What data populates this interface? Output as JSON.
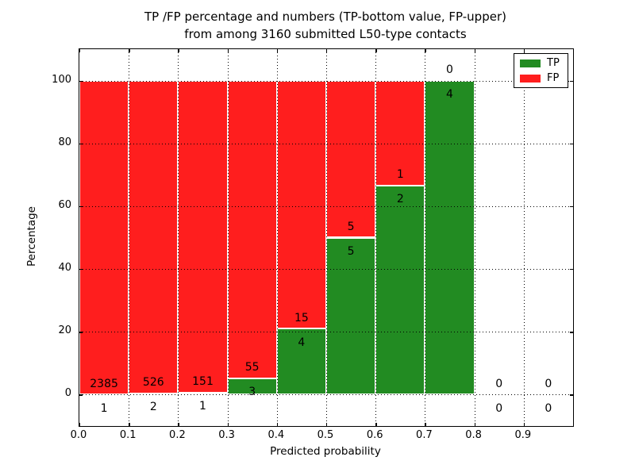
{
  "figure": {
    "title_line1": "TP /FP percentage and numbers (TP-bottom value, FP-upper)",
    "title_line2": "from among 3160 submitted L50-type contacts",
    "xlabel": "Predicted probability",
    "ylabel": "Percentage"
  },
  "chart_data": {
    "type": "bar",
    "subtype": "stacked-normalized-percent",
    "title": "TP /FP percentage and numbers (TP-bottom value, FP-upper) from among 3160 submitted L50-type contacts",
    "xlabel": "Predicted probability",
    "ylabel": "Percentage",
    "total_submitted": 3160,
    "xlim": [
      0.0,
      1.0
    ],
    "ylim": [
      -10,
      110
    ],
    "bin_width": 0.1,
    "x_tick_labels": [
      "0.0",
      "0.1",
      "0.2",
      "0.3",
      "0.4",
      "0.5",
      "0.6",
      "0.7",
      "0.8",
      "0.9"
    ],
    "y_ticks": [
      0,
      20,
      40,
      60,
      80,
      100
    ],
    "y_tick_labels": [
      "0",
      "20",
      "40",
      "60",
      "80",
      "100"
    ],
    "grid": "dotted",
    "legend_position": "upper right",
    "bar_edge_color": "#ffffff",
    "series": [
      {
        "name": "TP",
        "color": "#228b22",
        "counts": [
          1,
          2,
          1,
          3,
          4,
          5,
          2,
          4,
          0,
          0
        ]
      },
      {
        "name": "FP",
        "color": "#ff1e1e",
        "counts": [
          2385,
          526,
          151,
          55,
          15,
          5,
          1,
          0,
          0,
          0
        ]
      }
    ],
    "tp_percent_of_bin": [
      0.04,
      0.38,
      0.66,
      5.17,
      21.05,
      50.0,
      66.67,
      100.0,
      null,
      null
    ]
  }
}
